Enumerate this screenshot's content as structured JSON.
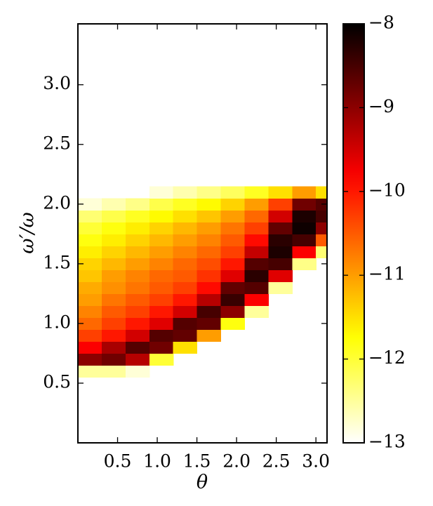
{
  "chart_data": {
    "type": "heatmap",
    "x_label": "θ",
    "y_label": "ω′/ω",
    "colormap": "hot_r",
    "clim": [
      -13,
      -8
    ],
    "xlim": [
      0,
      3.14
    ],
    "ylim": [
      0,
      3.51
    ],
    "xticks": [
      0.5,
      {
        "value": 1.0,
        "label": "1.0"
      },
      1.5,
      {
        "value": 2.0,
        "label": "2.0"
      },
      2.5,
      {
        "value": 3.0,
        "label": "3.0"
      }
    ],
    "yticks": [
      0.5,
      {
        "value": 1.0,
        "label": "1.0"
      },
      1.5,
      {
        "value": 2.0,
        "label": "2.0"
      },
      2.5,
      {
        "value": 3.0,
        "label": "3.0"
      }
    ],
    "colorbar_ticks": [
      {
        "value": -8,
        "label": "−8"
      },
      {
        "value": -9,
        "label": "−9"
      },
      {
        "value": -10,
        "label": "−10"
      },
      {
        "value": -11,
        "label": "−11"
      },
      {
        "value": -12,
        "label": "−12"
      },
      {
        "value": -13,
        "label": "−13"
      }
    ],
    "x_bins": [
      0,
      0.3,
      0.6,
      0.9,
      1.2,
      1.5,
      1.8,
      2.1,
      2.4,
      2.7,
      3.0,
      3.14
    ],
    "y_bins": [
      0.55,
      0.65,
      0.75,
      0.85,
      0.95,
      1.05,
      1.15,
      1.25,
      1.35,
      1.45,
      1.55,
      1.65,
      1.75,
      1.85,
      1.95,
      2.05,
      2.15
    ],
    "z": [
      [
        -12.5,
        -12.5,
        -12.8,
        null,
        null,
        null,
        null,
        null,
        null,
        null,
        null
      ],
      [
        -9,
        -8.8,
        -9.3,
        -12,
        null,
        null,
        null,
        null,
        null,
        null,
        null
      ],
      [
        -9.8,
        -9.2,
        -8.6,
        -8.8,
        -11.5,
        null,
        null,
        null,
        null,
        null,
        null
      ],
      [
        -10.3,
        -10,
        -9.5,
        -8.6,
        -8.7,
        -11,
        null,
        null,
        null,
        null,
        null
      ],
      [
        -10.6,
        -10.3,
        -10,
        -9.6,
        -8.6,
        -8.7,
        -11.8,
        null,
        null,
        null,
        null
      ],
      [
        -10.8,
        -10.5,
        -10.3,
        -10,
        -9.5,
        -8.5,
        -9,
        -12.5,
        null,
        null,
        null
      ],
      [
        -11,
        -10.7,
        -10.5,
        -10.3,
        -10,
        -9.3,
        -8.4,
        -9.8,
        null,
        null,
        null
      ],
      [
        -11.1,
        -10.9,
        -10.7,
        -10.5,
        -10.3,
        -9.9,
        -8.7,
        -8.6,
        -12.5,
        null,
        null
      ],
      [
        -11.3,
        -11,
        -10.8,
        -10.6,
        -10.5,
        -10.2,
        -9.6,
        -8.3,
        -9.6,
        null,
        null
      ],
      [
        -11.4,
        -11.2,
        -11,
        -10.8,
        -10.6,
        -10.4,
        -10,
        -8.6,
        -8.5,
        -12.4,
        null
      ],
      [
        -11.6,
        -11.4,
        -11.2,
        -11,
        -10.8,
        -10.6,
        -10.3,
        -9.4,
        -8.2,
        -9.8,
        -12.3
      ],
      [
        -11.8,
        -11.6,
        -11.4,
        -11.2,
        -11,
        -10.8,
        -10.5,
        -9.9,
        -8.3,
        -8.5,
        -10.5
      ],
      [
        -12,
        -11.8,
        -11.6,
        -11.4,
        -11.2,
        -11,
        -10.7,
        -10.3,
        -8.7,
        -8.1,
        -9
      ],
      [
        -12.3,
        -12.1,
        -11.9,
        -11.7,
        -11.5,
        -11.3,
        -11,
        -10.6,
        -9.5,
        -8.2,
        -8.5
      ],
      [
        -12.8,
        -12.6,
        -12.4,
        -12.1,
        -11.9,
        -11.7,
        -11.4,
        -11,
        -10.3,
        -8.8,
        -8.6
      ],
      [
        null,
        null,
        null,
        -12.8,
        -12.6,
        -12.4,
        -12.2,
        -11.9,
        -11.5,
        -11,
        -11.5
      ]
    ]
  }
}
